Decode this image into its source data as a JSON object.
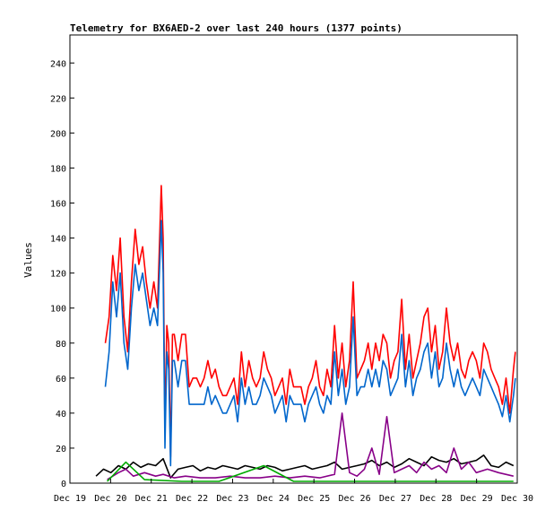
{
  "chart_data": {
    "type": "line",
    "title": "Telemetry for BX6AED-2 over last 240 hours (1377 points)",
    "xlabel": "",
    "ylabel": "Values",
    "x_ticks": [
      "Dec 19",
      "Dec 20",
      "Dec 21",
      "Dec 22",
      "Dec 23",
      "Dec 24",
      "Dec 25",
      "Dec 26",
      "Dec 27",
      "Dec 28",
      "Dec 29",
      "Dec 30"
    ],
    "y_ticks": [
      0,
      20,
      40,
      60,
      80,
      100,
      120,
      140,
      160,
      180,
      200,
      220,
      240
    ],
    "ylim": [
      0,
      256
    ],
    "xlim_hours": [
      0,
      240
    ],
    "grid": false,
    "legend": "none",
    "series": [
      {
        "color": "#ff0000",
        "x": [
          19,
          21,
          23,
          25,
          27,
          29,
          31,
          33,
          35,
          37,
          39,
          41,
          43,
          45,
          47,
          49,
          50,
          51,
          52,
          53,
          54,
          55,
          56,
          58,
          60,
          62,
          64,
          66,
          68,
          70,
          72,
          74,
          76,
          78,
          80,
          82,
          84,
          86,
          88,
          90,
          92,
          94,
          96,
          98,
          100,
          102,
          104,
          106,
          108,
          110,
          112,
          114,
          116,
          118,
          120,
          122,
          124,
          126,
          128,
          130,
          132,
          134,
          136,
          138,
          140,
          142,
          144,
          146,
          148,
          150,
          152,
          154,
          156,
          158,
          160,
          162,
          164,
          166,
          168,
          170,
          172,
          174,
          176,
          178,
          180,
          182,
          184,
          186,
          188,
          190,
          192,
          194,
          196,
          198,
          200,
          202,
          204,
          206,
          208,
          210,
          212,
          214,
          216,
          218,
          220,
          222,
          224,
          226,
          228,
          230,
          232,
          234,
          236,
          238,
          239
        ],
        "values": [
          80,
          95,
          130,
          110,
          140,
          95,
          75,
          115,
          145,
          125,
          135,
          115,
          100,
          115,
          100,
          170,
          140,
          30,
          90,
          80,
          15,
          85,
          85,
          70,
          85,
          85,
          55,
          60,
          60,
          55,
          60,
          70,
          60,
          65,
          55,
          50,
          50,
          55,
          60,
          45,
          75,
          55,
          70,
          60,
          55,
          60,
          75,
          65,
          60,
          50,
          55,
          60,
          45,
          65,
          55,
          55,
          55,
          45,
          55,
          60,
          70,
          55,
          50,
          65,
          55,
          90,
          60,
          80,
          55,
          70,
          115,
          60,
          65,
          70,
          80,
          65,
          80,
          70,
          85,
          80,
          60,
          70,
          75,
          105,
          65,
          85,
          60,
          70,
          80,
          95,
          100,
          75,
          90,
          65,
          75,
          100,
          80,
          70,
          80,
          65,
          60,
          70,
          75,
          70,
          60,
          80,
          75,
          65,
          60,
          55,
          45,
          60,
          40,
          65,
          75
        ]
      },
      {
        "color": "#0066cc",
        "x": [
          19,
          21,
          23,
          25,
          27,
          29,
          31,
          33,
          35,
          37,
          39,
          41,
          43,
          45,
          47,
          49,
          50,
          51,
          52,
          53,
          54,
          55,
          56,
          58,
          60,
          62,
          64,
          66,
          68,
          70,
          72,
          74,
          76,
          78,
          80,
          82,
          84,
          86,
          88,
          90,
          92,
          94,
          96,
          98,
          100,
          102,
          104,
          106,
          108,
          110,
          112,
          114,
          116,
          118,
          120,
          122,
          124,
          126,
          128,
          130,
          132,
          134,
          136,
          138,
          140,
          142,
          144,
          146,
          148,
          150,
          152,
          154,
          156,
          158,
          160,
          162,
          164,
          166,
          168,
          170,
          172,
          174,
          176,
          178,
          180,
          182,
          184,
          186,
          188,
          190,
          192,
          194,
          196,
          198,
          200,
          202,
          204,
          206,
          208,
          210,
          212,
          214,
          216,
          218,
          220,
          222,
          224,
          226,
          228,
          230,
          232,
          234,
          236,
          238,
          239
        ],
        "values": [
          55,
          75,
          115,
          95,
          120,
          80,
          65,
          100,
          125,
          110,
          120,
          105,
          90,
          100,
          90,
          150,
          120,
          20,
          75,
          65,
          10,
          70,
          70,
          55,
          70,
          70,
          45,
          45,
          45,
          45,
          45,
          55,
          45,
          50,
          45,
          40,
          40,
          45,
          50,
          35,
          60,
          45,
          55,
          45,
          45,
          50,
          60,
          55,
          50,
          40,
          45,
          50,
          35,
          50,
          45,
          45,
          45,
          35,
          45,
          50,
          55,
          45,
          40,
          50,
          45,
          75,
          50,
          65,
          45,
          55,
          95,
          50,
          55,
          55,
          65,
          55,
          65,
          55,
          70,
          65,
          50,
          55,
          60,
          85,
          55,
          70,
          50,
          60,
          65,
          75,
          80,
          60,
          75,
          55,
          60,
          80,
          65,
          55,
          65,
          55,
          50,
          55,
          60,
          55,
          50,
          65,
          60,
          55,
          50,
          45,
          38,
          50,
          35,
          50,
          60
        ]
      },
      {
        "color": "#000000",
        "x": [
          14,
          18,
          22,
          26,
          30,
          34,
          38,
          42,
          46,
          50,
          54,
          58,
          62,
          66,
          70,
          74,
          78,
          82,
          86,
          90,
          94,
          98,
          102,
          106,
          110,
          114,
          118,
          122,
          126,
          130,
          134,
          138,
          142,
          146,
          150,
          154,
          158,
          162,
          166,
          170,
          174,
          178,
          182,
          186,
          190,
          194,
          198,
          202,
          206,
          210,
          214,
          218,
          222,
          226,
          230,
          234,
          238
        ],
        "values": [
          4,
          8,
          6,
          10,
          8,
          12,
          9,
          11,
          10,
          14,
          3,
          8,
          9,
          10,
          7,
          9,
          8,
          10,
          9,
          8,
          10,
          9,
          8,
          10,
          9,
          7,
          8,
          9,
          10,
          8,
          9,
          10,
          12,
          8,
          9,
          10,
          11,
          13,
          10,
          12,
          9,
          11,
          14,
          12,
          10,
          15,
          13,
          12,
          14,
          11,
          12,
          13,
          16,
          10,
          9,
          12,
          10
        ]
      },
      {
        "color": "#880088",
        "x": [
          20,
          26,
          30,
          34,
          40,
          46,
          50,
          56,
          62,
          70,
          78,
          86,
          94,
          102,
          110,
          118,
          126,
          134,
          142,
          146,
          150,
          154,
          158,
          162,
          166,
          170,
          174,
          178,
          182,
          186,
          190,
          194,
          198,
          202,
          206,
          210,
          214,
          218,
          224,
          230,
          238
        ],
        "values": [
          2,
          6,
          8,
          4,
          6,
          4,
          5,
          3,
          4,
          3,
          3,
          4,
          3,
          3,
          4,
          3,
          4,
          3,
          5,
          40,
          6,
          4,
          8,
          20,
          5,
          38,
          6,
          8,
          10,
          6,
          12,
          8,
          10,
          6,
          20,
          8,
          12,
          6,
          8,
          6,
          4
        ]
      },
      {
        "color": "#00aa00",
        "x": [
          20,
          30,
          40,
          60,
          80,
          104,
          120,
          140,
          160,
          180,
          200,
          220,
          238
        ],
        "values": [
          1,
          12,
          2,
          1,
          1,
          10,
          1,
          1,
          1,
          1,
          1,
          1,
          1
        ]
      }
    ]
  }
}
